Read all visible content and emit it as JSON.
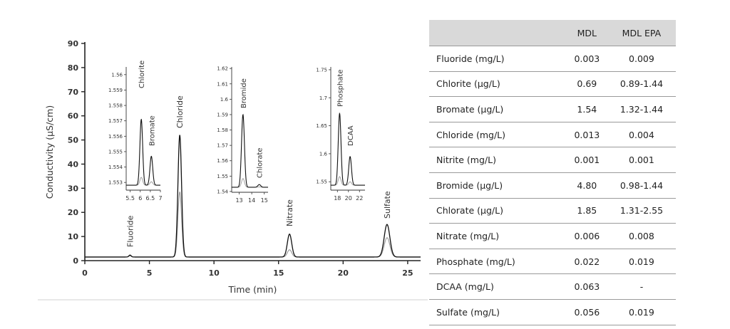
{
  "chart_data": {
    "type": "line",
    "xlabel": "Time (min)",
    "ylabel": "Conductivity (µS/cm)",
    "xlim": [
      0,
      26
    ],
    "ylim": [
      0,
      90
    ],
    "xticks": [
      0,
      5,
      10,
      15,
      20,
      25
    ],
    "yticks": [
      0,
      10,
      20,
      30,
      40,
      50,
      60,
      70,
      80,
      90
    ],
    "baseline": 1.5,
    "peaks": [
      {
        "name": "Fluoride",
        "time": 3.5,
        "height": 2.3,
        "height2": 2.0
      },
      {
        "name": "Chloride",
        "time": 7.35,
        "height": 52,
        "height2": 28.5
      },
      {
        "name": "Nitrate",
        "time": 15.85,
        "height": 11,
        "height2": 4.5
      },
      {
        "name": "Sulfate",
        "time": 23.4,
        "height": 15,
        "height2": 9.5
      }
    ],
    "insets": [
      {
        "xticks": [
          "5.5",
          "6",
          "6.5",
          "7"
        ],
        "xlim": [
          5.3,
          7.0
        ],
        "yticks": [
          "1.553",
          "1.554",
          "1.555",
          "1.556",
          "1.557",
          "1.558",
          "1.559",
          "1.56"
        ],
        "ylim": [
          1.5525,
          1.5605
        ],
        "peaks": [
          {
            "name": "Chlorite",
            "time": 6.05,
            "height": 1.5571
          },
          {
            "name": "Bromate",
            "time": 6.55,
            "height": 1.5547
          }
        ]
      },
      {
        "xticks": [
          "13",
          "14",
          "15"
        ],
        "xlim": [
          12.4,
          15.3
        ],
        "yticks": [
          "1.54",
          "1.55",
          "1.56",
          "1.57",
          "1.58",
          "1.59",
          "1.6",
          "1.61",
          "1.62"
        ],
        "ylim": [
          1.5395,
          1.621
        ],
        "peaks": [
          {
            "name": "Bromide",
            "time": 13.3,
            "height": 1.59
          },
          {
            "name": "Chlorate",
            "time": 14.6,
            "height": 1.5445
          }
        ]
      },
      {
        "xticks": [
          "18",
          "20",
          "22"
        ],
        "xlim": [
          16.8,
          23.0
        ],
        "yticks": [
          "1.55",
          "1.6",
          "1.65",
          "1.7",
          "1.75"
        ],
        "ylim": [
          1.535,
          1.755
        ],
        "peaks": [
          {
            "name": "Phosphate",
            "time": 18.4,
            "height": 1.672
          },
          {
            "name": "DCAA",
            "time": 20.3,
            "height": 1.595
          }
        ]
      }
    ]
  },
  "table": {
    "headers": [
      "",
      "MDL",
      "MDL EPA"
    ],
    "rows": [
      {
        "analyte": "Fluoride (mg/L)",
        "mdl": "0.003",
        "mdl_epa": "0.009"
      },
      {
        "analyte": "Chlorite (µg/L)",
        "mdl": "0.69",
        "mdl_epa": "0.89-1.44"
      },
      {
        "analyte": "Bromate (µg/L)",
        "mdl": "1.54",
        "mdl_epa": "1.32-1.44"
      },
      {
        "analyte": "Chloride (mg/L)",
        "mdl": "0.013",
        "mdl_epa": "0.004"
      },
      {
        "analyte": "Nitrite (mg/L)",
        "mdl": "0.001",
        "mdl_epa": "0.001"
      },
      {
        "analyte": "Bromide (µg/L)",
        "mdl": "4.80",
        "mdl_epa": "0.98-1.44"
      },
      {
        "analyte": "Chlorate (µg/L)",
        "mdl": "1.85",
        "mdl_epa": "1.31-2.55"
      },
      {
        "analyte": "Nitrate (mg/L)",
        "mdl": "0.006",
        "mdl_epa": "0.008"
      },
      {
        "analyte": "Phosphate (mg/L)",
        "mdl": "0.022",
        "mdl_epa": "0.019"
      },
      {
        "analyte": "DCAA (mg/L)",
        "mdl": "0.063",
        "mdl_epa": "-"
      },
      {
        "analyte": "Sulfate (mg/L)",
        "mdl": "0.056",
        "mdl_epa": "0.019"
      }
    ]
  }
}
